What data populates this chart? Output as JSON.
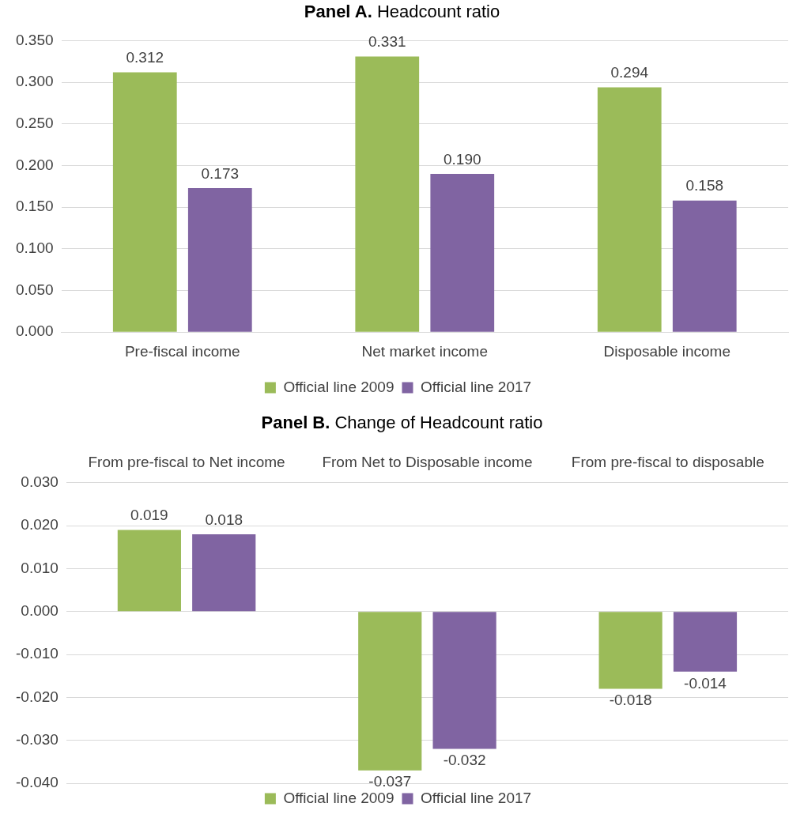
{
  "chart_data": [
    {
      "type": "bar",
      "title": "Panel A. Headcount ratio",
      "categories": [
        "Pre-fiscal income",
        "Net market income",
        "Disposable income"
      ],
      "series": [
        {
          "name": "Official line 2009",
          "color": "#9bbb59",
          "values": [
            0.312,
            0.331,
            0.294
          ],
          "value_labels": [
            "0.312",
            "0.331",
            "0.294"
          ]
        },
        {
          "name": "Official line 2017",
          "color": "#8064a2",
          "values": [
            0.173,
            0.19,
            0.158
          ],
          "value_labels": [
            "0.173",
            "0.190",
            "0.158"
          ]
        }
      ],
      "ylim": [
        0,
        0.35
      ],
      "yticks": [
        {
          "value": 0,
          "label": "0.000"
        },
        {
          "value": 0.05,
          "label": "0.050"
        },
        {
          "value": 0.1,
          "label": "0.100"
        },
        {
          "value": 0.15,
          "label": "0.150"
        },
        {
          "value": 0.2,
          "label": "0.200"
        },
        {
          "value": 0.25,
          "label": "0.250"
        },
        {
          "value": 0.3,
          "label": "0.300"
        },
        {
          "value": 0.35,
          "label": "0.350"
        }
      ],
      "grid": "y",
      "legend": "bottom"
    },
    {
      "type": "bar",
      "title": "Panel B. Change of Headcount ratio",
      "categories": [
        "From pre-fiscal to Net income",
        "From Net to Disposable income",
        "From pre-fiscal to disposable"
      ],
      "series": [
        {
          "name": "Official line 2009",
          "color": "#9bbb59",
          "values": [
            0.019,
            -0.037,
            -0.018
          ],
          "value_labels": [
            "0.019",
            "-0.037",
            "-0.018"
          ]
        },
        {
          "name": "Official line 2017",
          "color": "#8064a2",
          "values": [
            0.018,
            -0.032,
            -0.014
          ],
          "value_labels": [
            "0.018",
            "-0.032",
            "-0.014"
          ]
        }
      ],
      "ylim": [
        -0.04,
        0.03
      ],
      "yticks": [
        {
          "value": -0.04,
          "label": "-0.040"
        },
        {
          "value": -0.03,
          "label": "-0.030"
        },
        {
          "value": -0.02,
          "label": "-0.020"
        },
        {
          "value": -0.01,
          "label": "-0.010"
        },
        {
          "value": 0,
          "label": "0.000"
        },
        {
          "value": 0.01,
          "label": "0.010"
        },
        {
          "value": 0.02,
          "label": "0.020"
        },
        {
          "value": 0.03,
          "label": "0.030"
        }
      ],
      "grid": "y",
      "legend": "bottom"
    }
  ]
}
